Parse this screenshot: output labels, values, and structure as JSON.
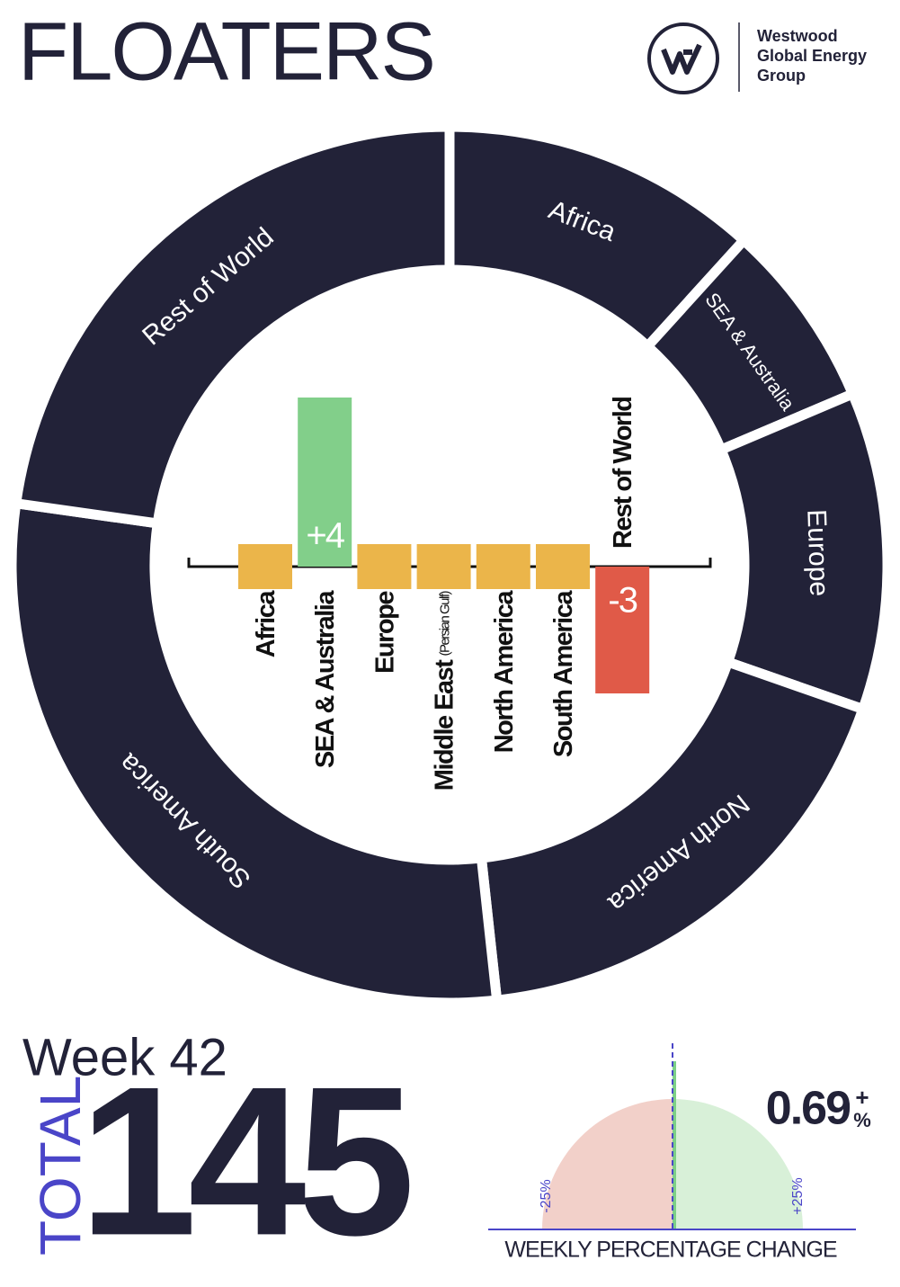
{
  "header": {
    "title": "FLOATERS",
    "logo_lines": [
      "Westwood",
      "Global Energy",
      "Group"
    ]
  },
  "summary": {
    "week": "Week 42",
    "total_label": "TOTAL",
    "total": 145
  },
  "chart_data": [
    {
      "type": "donut",
      "categories": [
        "Africa",
        "SEA & Australia",
        "Europe",
        "North America",
        "South America",
        "Rest of World"
      ],
      "values": [
        17,
        10,
        17,
        26,
        42,
        33
      ],
      "color": "#222238"
    },
    {
      "type": "bar",
      "categories": [
        "Africa",
        "SEA & Australia",
        "Europe",
        "Middle East",
        "North America",
        "South America",
        "Rest of World"
      ],
      "category_notes": [
        null,
        null,
        null,
        "(Persian Gulf)",
        null,
        null,
        null
      ],
      "values": [
        0,
        4,
        0,
        0,
        0,
        0,
        -3
      ],
      "value_labels": [
        null,
        "+4",
        null,
        null,
        null,
        null,
        "-3"
      ],
      "colors": {
        "positive": "#82cf8a",
        "negative": "#e05a48",
        "zero": "#ebb54a"
      }
    },
    {
      "type": "gauge",
      "title": "WEEKLY PERCENTAGE CHANGE",
      "value": 0.69,
      "sign": "+",
      "unit": "%",
      "xlim": [
        -25,
        25
      ],
      "xticks": [
        {
          "value": -25,
          "label": "-25%"
        },
        {
          "value": 25,
          "label": "+25%"
        }
      ],
      "colors": {
        "negative": "#f2d0c9",
        "positive": "#d8f0d8",
        "needle": "#7ccf87",
        "axis": "#4a45c8"
      }
    }
  ]
}
